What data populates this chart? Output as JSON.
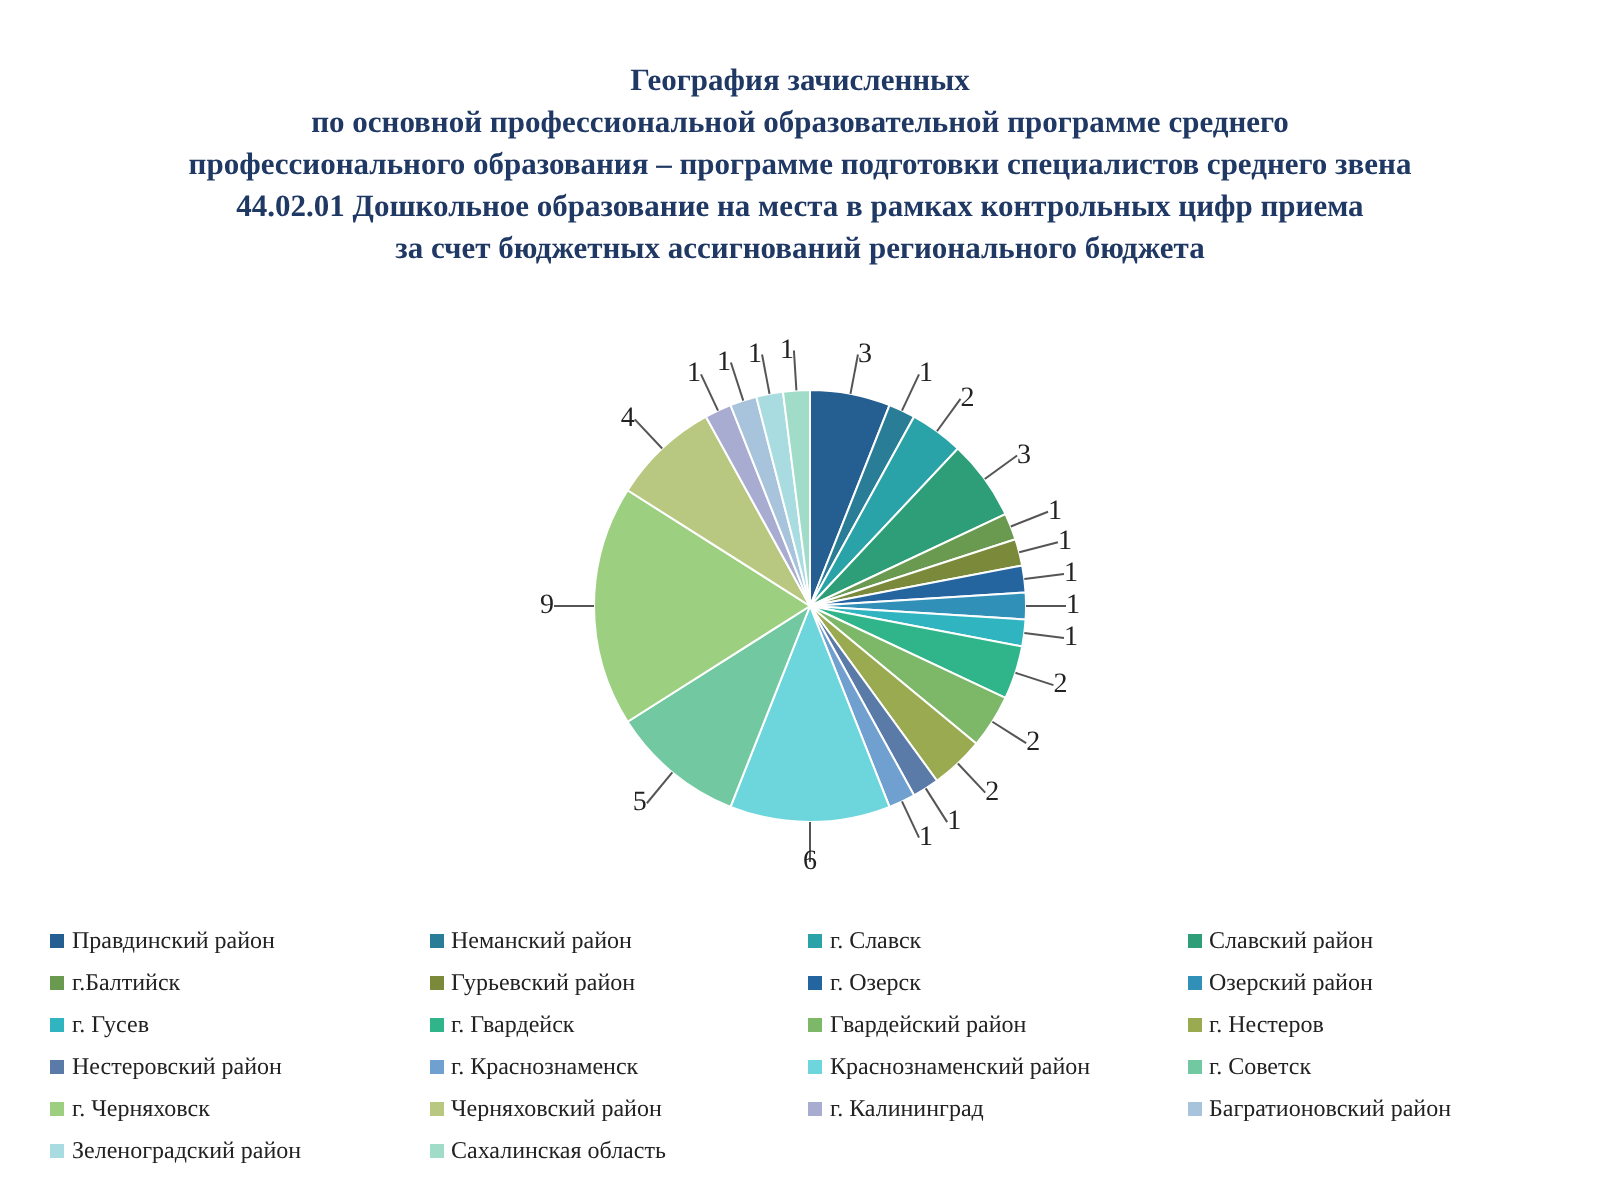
{
  "chart_data": {
    "type": "pie",
    "title": "География зачисленных\nпо основной профессиональной образовательной программе среднего\nпрофессионального образования – программе подготовки специалистов среднего звена\n44.02.01 Дошкольное образование на места в рамках контрольных цифр приема\nза счет бюджетных ассигнований регионального бюджета",
    "categories": [
      "Правдинский район",
      "Неманский район",
      "г. Славск",
      "Славский район",
      "г.Балтийск",
      "Гурьевский район",
      "г. Озерск",
      "Озерский район",
      "г. Гусев",
      "г. Гвардейск",
      "Гвардейский район",
      "г. Нестеров",
      "Нестеровский район",
      "г. Краснознаменск",
      "Краснознаменский район",
      "г. Советск",
      "г. Черняховск",
      "Черняховский район",
      "г. Калининград",
      "Багратионовский район",
      "Зеленоградский район",
      "Сахалинская область"
    ],
    "values": [
      3,
      1,
      2,
      3,
      1,
      1,
      1,
      1,
      1,
      2,
      2,
      2,
      1,
      1,
      6,
      5,
      9,
      4,
      1,
      1,
      1,
      1
    ],
    "colors": [
      "#255e91",
      "#2a7d96",
      "#2aa3a8",
      "#2e9e78",
      "#6a9a50",
      "#7a8a3a",
      "#2465a0",
      "#3090b8",
      "#30b4c0",
      "#30b48a",
      "#7cb868",
      "#9aaa50",
      "#5a7aa8",
      "#6fa0d0",
      "#6dd6dc",
      "#72c8a0",
      "#9cd080",
      "#b8c880",
      "#a8acd0",
      "#a8c4dc",
      "#a8dce0",
      "#a0dcc8"
    ],
    "data_labels": true,
    "legend": "bottom"
  }
}
